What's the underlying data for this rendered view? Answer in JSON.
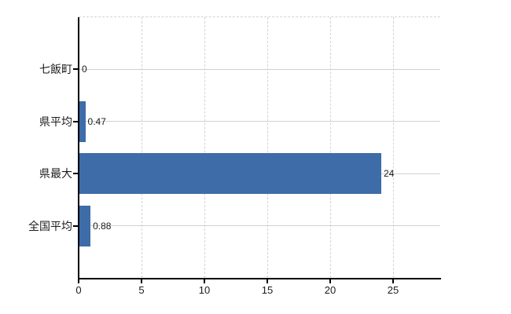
{
  "chart_data": {
    "type": "bar",
    "orientation": "horizontal",
    "title": "",
    "xlabel": "",
    "ylabel": "",
    "categories": [
      "七飯町",
      "県平均",
      "県最大",
      "全国平均"
    ],
    "values": [
      0,
      0.47,
      24,
      0.88
    ],
    "value_labels": [
      "0",
      "0.47",
      "24",
      "0.88"
    ],
    "x_ticks": [
      0,
      5,
      10,
      15,
      20,
      25
    ],
    "x_tick_labels": [
      "0",
      "5",
      "10",
      "15",
      "20",
      "25"
    ],
    "xlim": [
      0,
      28.75
    ],
    "grid": true,
    "legend": "none",
    "colors": {
      "bar": "#3d6ca8",
      "axis": "#000000",
      "gridline_horizontal": "#cfd5ca",
      "gridline_vertical": "#d6d1d6",
      "plot_top_border": "#d6d1d6",
      "text": "#1c1c1c",
      "background": "#ffffff"
    }
  }
}
